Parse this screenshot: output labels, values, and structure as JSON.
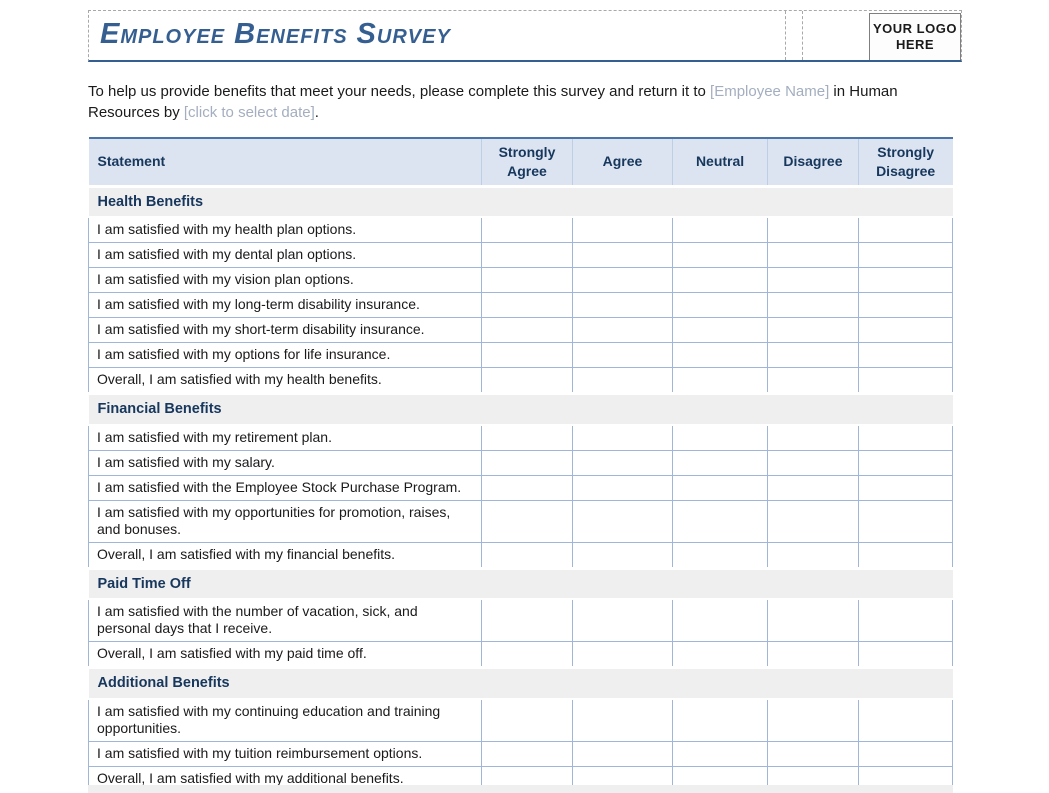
{
  "header": {
    "title_words": [
      "Employee",
      "Benefits",
      "Survey"
    ],
    "logo_label": "YOUR LOGO HERE"
  },
  "intro": {
    "part1": "To help us provide benefits that meet your needs, please complete this survey and return it to",
    "placeholder_name": "[Employee Name]",
    "part2": "in Human Resources by",
    "placeholder_date": "[click to select date]",
    "part3": "."
  },
  "colors": {
    "title_blue": "#365f91",
    "header_cell_bg": "#dbe4f0",
    "header_cell_text": "#17375d",
    "grid_border": "#9fb6d9",
    "accent_border": "#4a74a8",
    "section_bg": "#efeff0",
    "placeholder_text": "#a3aebf"
  },
  "table": {
    "columns": [
      "Statement",
      "Strongly Agree",
      "Agree",
      "Neutral",
      "Disagree",
      "Strongly Disagree"
    ],
    "sections": [
      {
        "title": "Health Benefits",
        "rows": [
          "I am satisfied with my health plan options.",
          "I am satisfied with my dental plan options.",
          "I am satisfied with my vision plan options.",
          "I am satisfied with my long-term disability insurance.",
          "I am satisfied with my short-term disability insurance.",
          "I am satisfied with my options for life insurance.",
          "Overall, I am satisfied with my health benefits."
        ]
      },
      {
        "title": "Financial Benefits",
        "rows": [
          "I am satisfied with my retirement plan.",
          "I am satisfied with my salary.",
          "I am satisfied with the Employee Stock Purchase Program.",
          "I am satisfied with my opportunities for promotion, raises, and bonuses.",
          "Overall, I am satisfied with my financial benefits."
        ]
      },
      {
        "title": "Paid Time Off",
        "rows": [
          "I am satisfied with the number of vacation, sick, and personal days that I receive.",
          "Overall, I am satisfied with my paid time off."
        ]
      },
      {
        "title": "Additional Benefits",
        "rows": [
          "I am satisfied with my continuing education and training opportunities.",
          "I am satisfied with my tuition reimbursement options.",
          "Overall, I am satisfied with my additional benefits."
        ]
      }
    ]
  }
}
